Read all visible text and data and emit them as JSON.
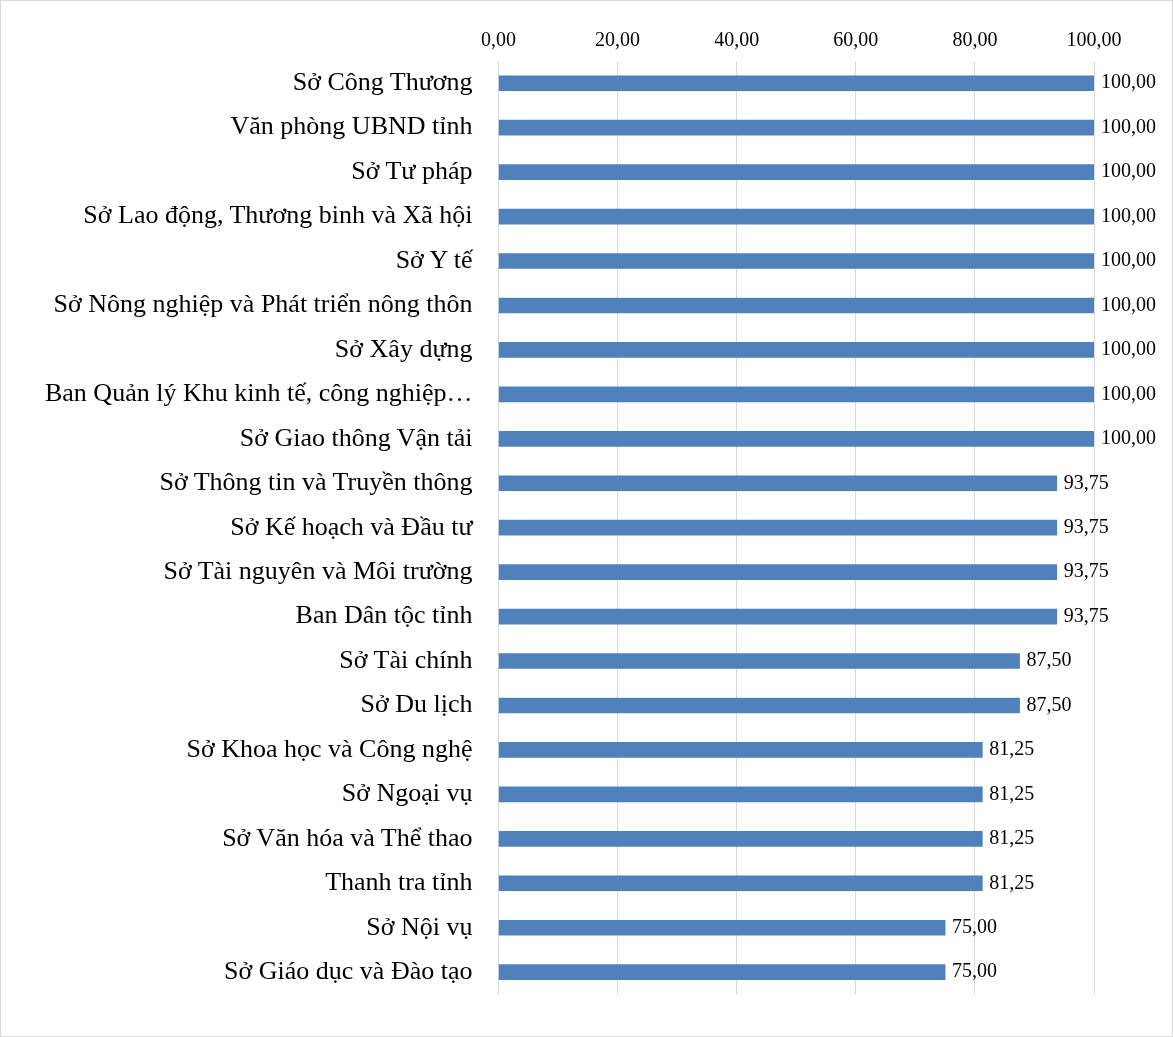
{
  "chart_data": {
    "type": "bar",
    "orientation": "horizontal",
    "categories": [
      "Sở Công Thương",
      "Văn phòng UBND tỉnh",
      "Sở Tư pháp",
      "Sở Lao động, Thương binh và Xã hội",
      "Sở Y tế",
      "Sở Nông nghiệp và Phát triển nông thôn",
      "Sở Xây dựng",
      "Ban Quản lý Khu kinh tế, công nghiệp…",
      "Sở Giao thông Vận tải",
      "Sở Thông tin và Truyền thông",
      "Sở Kế hoạch và Đầu tư",
      "Sở Tài nguyên và Môi trường",
      "Ban Dân tộc tỉnh",
      "Sở Tài chính",
      "Sở Du lịch",
      "Sở Khoa học và Công nghệ",
      "Sở Ngoại vụ",
      "Sở Văn hóa và Thể thao",
      "Thanh tra tỉnh",
      "Sở Nội vụ",
      "Sở Giáo dục và Đào tạo"
    ],
    "values": [
      100,
      100,
      100,
      100,
      100,
      100,
      100,
      100,
      100,
      93.75,
      93.75,
      93.75,
      93.75,
      87.5,
      87.5,
      81.25,
      81.25,
      81.25,
      81.25,
      75,
      75
    ],
    "value_labels": [
      "100,00",
      "100,00",
      "100,00",
      "100,00",
      "100,00",
      "100,00",
      "100,00",
      "100,00",
      "100,00",
      "93,75",
      "93,75",
      "93,75",
      "93,75",
      "87,50",
      "87,50",
      "81,25",
      "81,25",
      "81,25",
      "81,25",
      "75,00",
      "75,00"
    ],
    "color": "#4f81bd",
    "xlim": [
      0,
      100
    ],
    "xticks": [
      {
        "value": 0,
        "label": "0,00"
      },
      {
        "value": 20,
        "label": "20,00"
      },
      {
        "value": 40,
        "label": "40,00"
      },
      {
        "value": 60,
        "label": "60,00"
      },
      {
        "value": 80,
        "label": "80,00"
      },
      {
        "value": 100,
        "label": "100,00"
      }
    ],
    "grid": "x",
    "legend": false
  }
}
